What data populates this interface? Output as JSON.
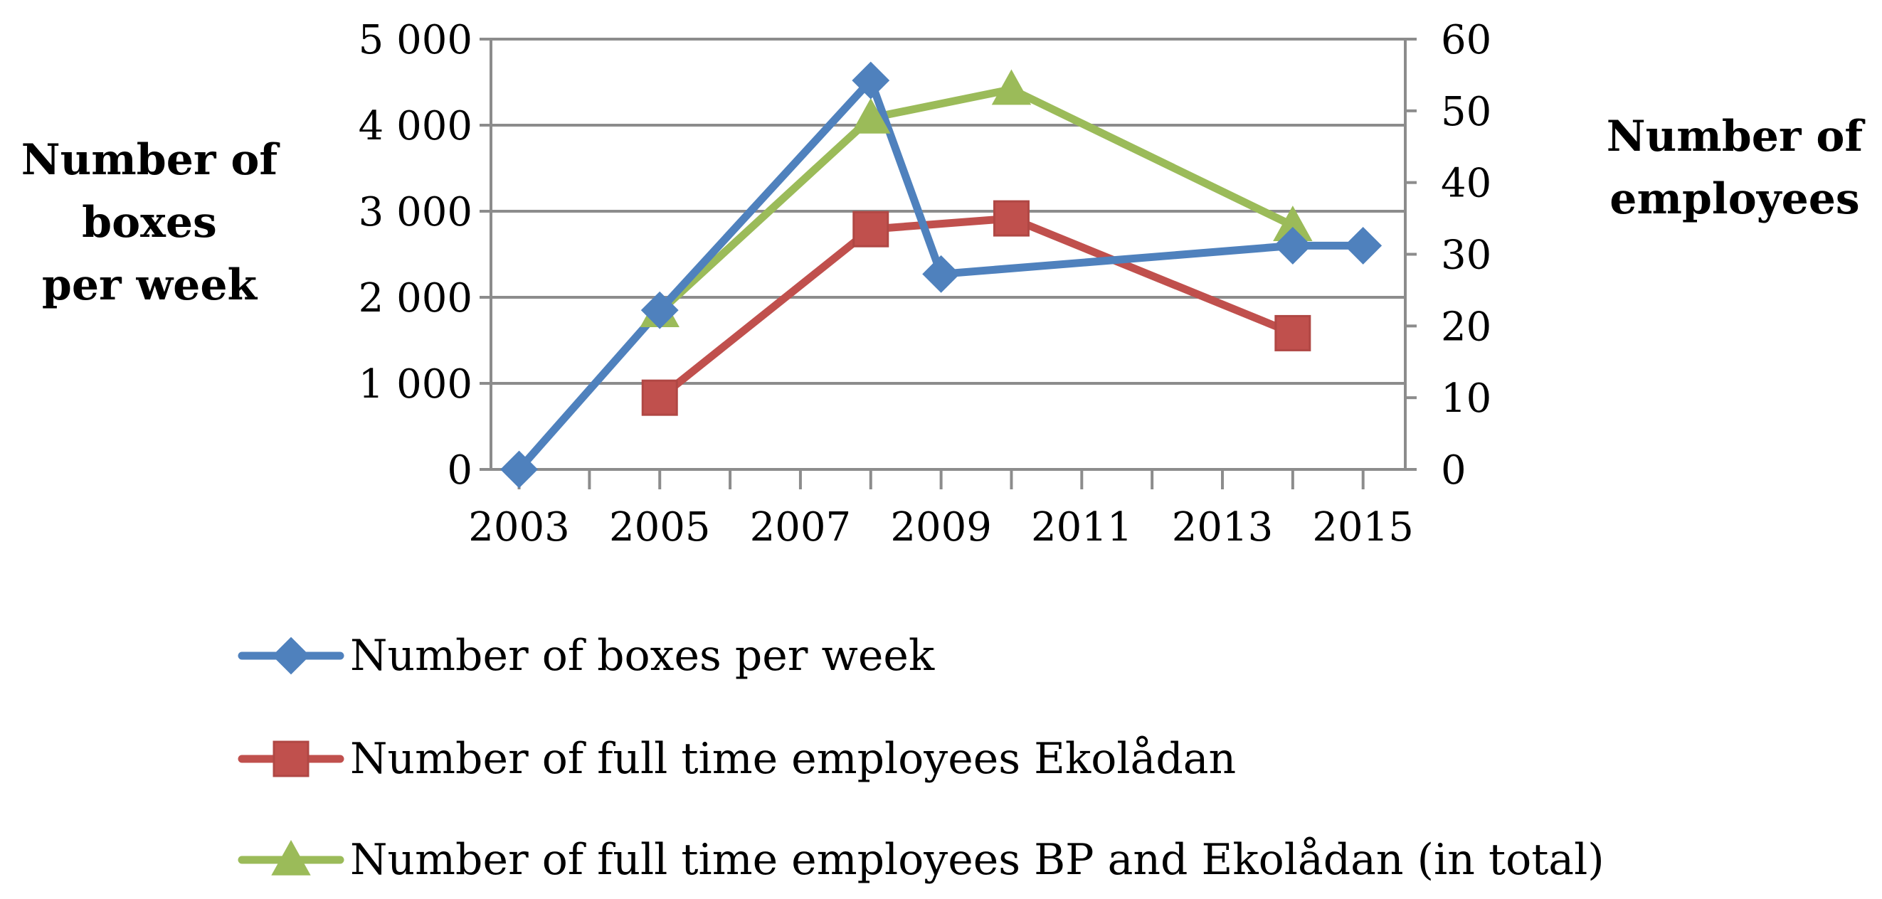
{
  "chart_data": {
    "type": "line",
    "title": "",
    "x_axis": {
      "label": "",
      "range": [
        2002.6,
        2015.6
      ],
      "ticks": [
        2003,
        2005,
        2007,
        2009,
        2011,
        2013,
        2015
      ],
      "tick_labels": [
        "2003",
        "2005",
        "2007",
        "2009",
        "2011",
        "2013",
        "2015"
      ]
    },
    "y_axis_left": {
      "label_lines": [
        "Number of",
        "boxes",
        "per week"
      ],
      "range": [
        0,
        5000
      ],
      "ticks": [
        0,
        1000,
        2000,
        3000,
        4000,
        5000
      ],
      "tick_labels": [
        "0",
        "1 000",
        "2 000",
        "3 000",
        "4 000",
        "5 000"
      ]
    },
    "y_axis_right": {
      "label_lines": [
        "Number of",
        "employees"
      ],
      "range": [
        0,
        60
      ],
      "ticks": [
        0,
        10,
        20,
        30,
        40,
        50,
        60
      ],
      "tick_labels": [
        "0",
        "10",
        "20",
        "30",
        "40",
        "50",
        "60"
      ]
    },
    "grid": true,
    "legend_position": "bottom",
    "series": [
      {
        "name": "Number of boxes per week",
        "axis": "left",
        "marker": "diamond",
        "color": "#4F81BD",
        "x": [
          2003,
          2005,
          2008,
          2009,
          2014,
          2015
        ],
        "y": [
          0,
          1850,
          4520,
          2270,
          2600,
          2600
        ]
      },
      {
        "name": "Number of full time employees Ekolådan",
        "axis": "right",
        "marker": "square",
        "color": "#C0504D",
        "x": [
          2005,
          2008,
          2010,
          2014
        ],
        "y": [
          10,
          33.5,
          35,
          19
        ]
      },
      {
        "name": "Number of full time employees BP and Ekolådan (in total)",
        "axis": "right",
        "marker": "triangle",
        "color": "#9BBB59",
        "x": [
          2005,
          2008,
          2010,
          2014
        ],
        "y": [
          22,
          49,
          53,
          34
        ]
      }
    ]
  }
}
